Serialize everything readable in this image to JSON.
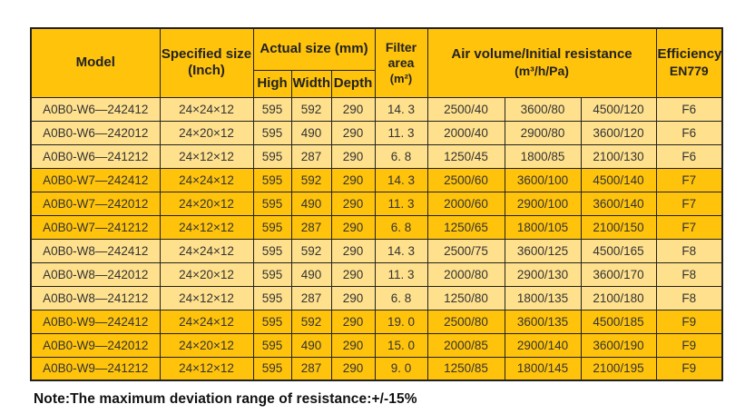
{
  "colors": {
    "band_light": "#ffe18d",
    "band_dark": "#ffc30b",
    "border": "#222222",
    "header_text": "#222222",
    "data_text": "#333333",
    "note_text": "#111111",
    "background": "#ffffff"
  },
  "header": {
    "model": "Model",
    "specified_size_line1": "Specified size",
    "specified_size_line2": "(Inch)",
    "actual_size": "Actual size (mm)",
    "high": "High",
    "width": "Width",
    "depth": "Depth",
    "filter_line1": "Filter",
    "filter_line2": "area",
    "filter_line3": "(m²)",
    "air_volume_line1": "Air volume/Initial resistance",
    "air_volume_line2": "(m³/h/Pa)",
    "efficiency_line1": "Efficiency",
    "efficiency_line2": "EN779"
  },
  "rows": [
    {
      "model": "A0B0-W6—242412",
      "specified": "24×24×12",
      "high": "595",
      "width": "592",
      "depth": "290",
      "area": "14. 3",
      "av1": "2500/40",
      "av2": "3600/80",
      "av3": "4500/120",
      "eff": "F6",
      "band": "light"
    },
    {
      "model": "A0B0-W6—242012",
      "specified": "24×20×12",
      "high": "595",
      "width": "490",
      "depth": "290",
      "area": "11. 3",
      "av1": "2000/40",
      "av2": "2900/80",
      "av3": "3600/120",
      "eff": "F6",
      "band": "light"
    },
    {
      "model": "A0B0-W6—241212",
      "specified": "24×12×12",
      "high": "595",
      "width": "287",
      "depth": "290",
      "area": "6. 8",
      "av1": "1250/45",
      "av2": "1800/85",
      "av3": "2100/130",
      "eff": "F6",
      "band": "light"
    },
    {
      "model": "A0B0-W7—242412",
      "specified": "24×24×12",
      "high": "595",
      "width": "592",
      "depth": "290",
      "area": "14. 3",
      "av1": "2500/60",
      "av2": "3600/100",
      "av3": "4500/140",
      "eff": "F7",
      "band": "dark"
    },
    {
      "model": "A0B0-W7—242012",
      "specified": "24×20×12",
      "high": "595",
      "width": "490",
      "depth": "290",
      "area": "11. 3",
      "av1": "2000/60",
      "av2": "2900/100",
      "av3": "3600/140",
      "eff": "F7",
      "band": "dark"
    },
    {
      "model": "A0B0-W7—241212",
      "specified": "24×12×12",
      "high": "595",
      "width": "287",
      "depth": "290",
      "area": "6. 8",
      "av1": "1250/65",
      "av2": "1800/105",
      "av3": "2100/150",
      "eff": "F7",
      "band": "dark"
    },
    {
      "model": "A0B0-W8—242412",
      "specified": "24×24×12",
      "high": "595",
      "width": "592",
      "depth": "290",
      "area": "14. 3",
      "av1": "2500/75",
      "av2": "3600/125",
      "av3": "4500/165",
      "eff": "F8",
      "band": "light"
    },
    {
      "model": "A0B0-W8—242012",
      "specified": "24×20×12",
      "high": "595",
      "width": "490",
      "depth": "290",
      "area": "11. 3",
      "av1": "2000/80",
      "av2": "2900/130",
      "av3": "3600/170",
      "eff": "F8",
      "band": "light"
    },
    {
      "model": "A0B0-W8—241212",
      "specified": "24×12×12",
      "high": "595",
      "width": "287",
      "depth": "290",
      "area": "6. 8",
      "av1": "1250/80",
      "av2": "1800/135",
      "av3": "2100/180",
      "eff": "F8",
      "band": "light"
    },
    {
      "model": "A0B0-W9—242412",
      "specified": "24×24×12",
      "high": "595",
      "width": "592",
      "depth": "290",
      "area": "19. 0",
      "av1": "2500/80",
      "av2": "3600/135",
      "av3": "4500/185",
      "eff": "F9",
      "band": "dark"
    },
    {
      "model": "A0B0-W9—242012",
      "specified": "24×20×12",
      "high": "595",
      "width": "490",
      "depth": "290",
      "area": "15. 0",
      "av1": "2000/85",
      "av2": "2900/140",
      "av3": "3600/190",
      "eff": "F9",
      "band": "dark"
    },
    {
      "model": "A0B0-W9—241212",
      "specified": "24×12×12",
      "high": "595",
      "width": "287",
      "depth": "290",
      "area": "9. 0",
      "av1": "1250/85",
      "av2": "1800/145",
      "av3": "2100/195",
      "eff": "F9",
      "band": "dark"
    }
  ],
  "note": "Note:The maximum deviation range of resistance:+/-15%"
}
